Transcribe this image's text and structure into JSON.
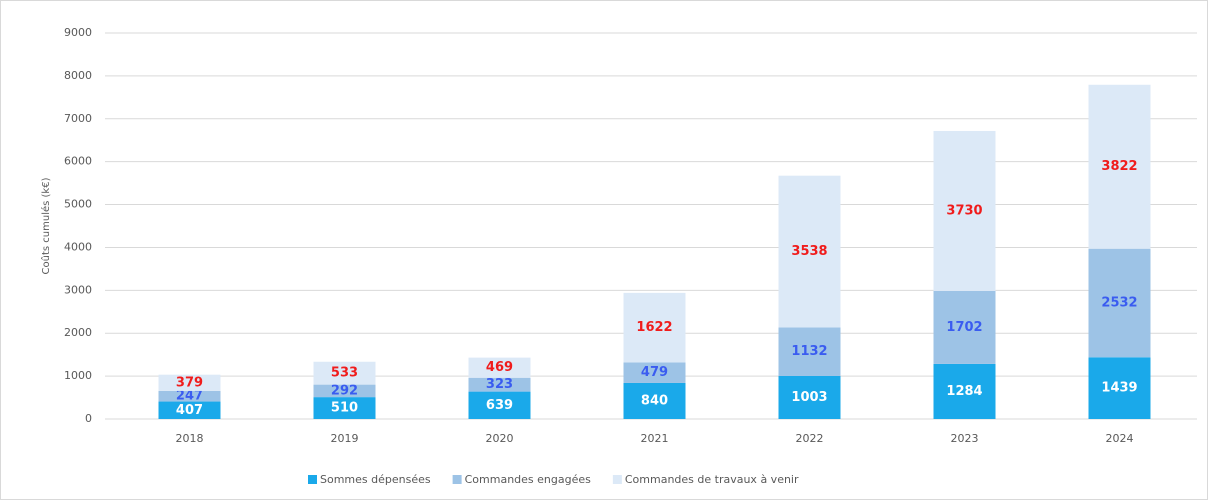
{
  "chart_data": {
    "type": "stacked_bar",
    "y_label": "Coûts cumulés (k€)",
    "categories": [
      "2018",
      "2019",
      "2020",
      "2021",
      "2022",
      "2023",
      "2024"
    ],
    "series": [
      {
        "name": "Sommes dépensées",
        "color": "#1aa9ea",
        "label_color": "#ffffff",
        "values": [
          407,
          510,
          639,
          840,
          1003,
          1284,
          1439
        ]
      },
      {
        "name": "Commandes engagées",
        "color": "#9dc3e6",
        "label_color": "#3a5cf0",
        "values": [
          247,
          292,
          323,
          479,
          1132,
          1702,
          2532
        ]
      },
      {
        "name": "Commandes de travaux à venir",
        "color": "#dce9f7",
        "label_color": "#f01c1c",
        "values": [
          379,
          533,
          469,
          1622,
          3538,
          3730,
          3822
        ]
      }
    ],
    "ylim": [
      0,
      9000
    ],
    "yticks": [
      0,
      1000,
      2000,
      3000,
      4000,
      5000,
      6000,
      7000,
      8000,
      9000
    ],
    "grid": true,
    "legend": "bottom"
  }
}
